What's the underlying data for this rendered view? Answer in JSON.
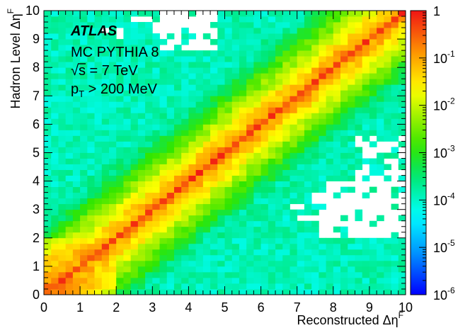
{
  "chart_data": {
    "type": "heatmap",
    "xlabel": "Reconstructed Δη",
    "xlabel_sup": "F",
    "ylabel": "Hadron Level Δη",
    "ylabel_sup": "F",
    "xlim": [
      0,
      10
    ],
    "ylim": [
      0,
      10
    ],
    "x_ticks": [
      "0",
      "1",
      "2",
      "3",
      "4",
      "5",
      "6",
      "7",
      "8",
      "9",
      "10"
    ],
    "y_ticks": [
      "0",
      "1",
      "2",
      "3",
      "4",
      "5",
      "6",
      "7",
      "8",
      "9",
      "10"
    ],
    "bins": 50,
    "z_scale": "log",
    "zlim": [
      1e-06,
      1
    ],
    "colorbar_labels": [
      {
        "base": "1",
        "exp": ""
      },
      {
        "base": "10",
        "exp": "-1"
      },
      {
        "base": "10",
        "exp": "-2"
      },
      {
        "base": "10",
        "exp": "-3"
      },
      {
        "base": "10",
        "exp": "-4"
      },
      {
        "base": "10",
        "exp": "-5"
      },
      {
        "base": "10",
        "exp": "-6"
      }
    ],
    "description_of_values": {
      "diagonal_peak": 0.5,
      "low_eta_region_peak": 0.4,
      "off_diagonal_floor": 0.0001,
      "empty_regions": [
        "upper-left near x 3.2-4.8, y 8.5-10",
        "lower-right near x 7.5-10, y 2-5.5"
      ]
    }
  },
  "annotations": {
    "experiment": "ATLAS",
    "generator": "MC PYTHIA 8",
    "energy_sqrt": "√",
    "energy_rest": "s = 7 TeV",
    "pt_main": "p",
    "pt_sub": "T",
    "pt_rest": " > 200 MeV"
  }
}
